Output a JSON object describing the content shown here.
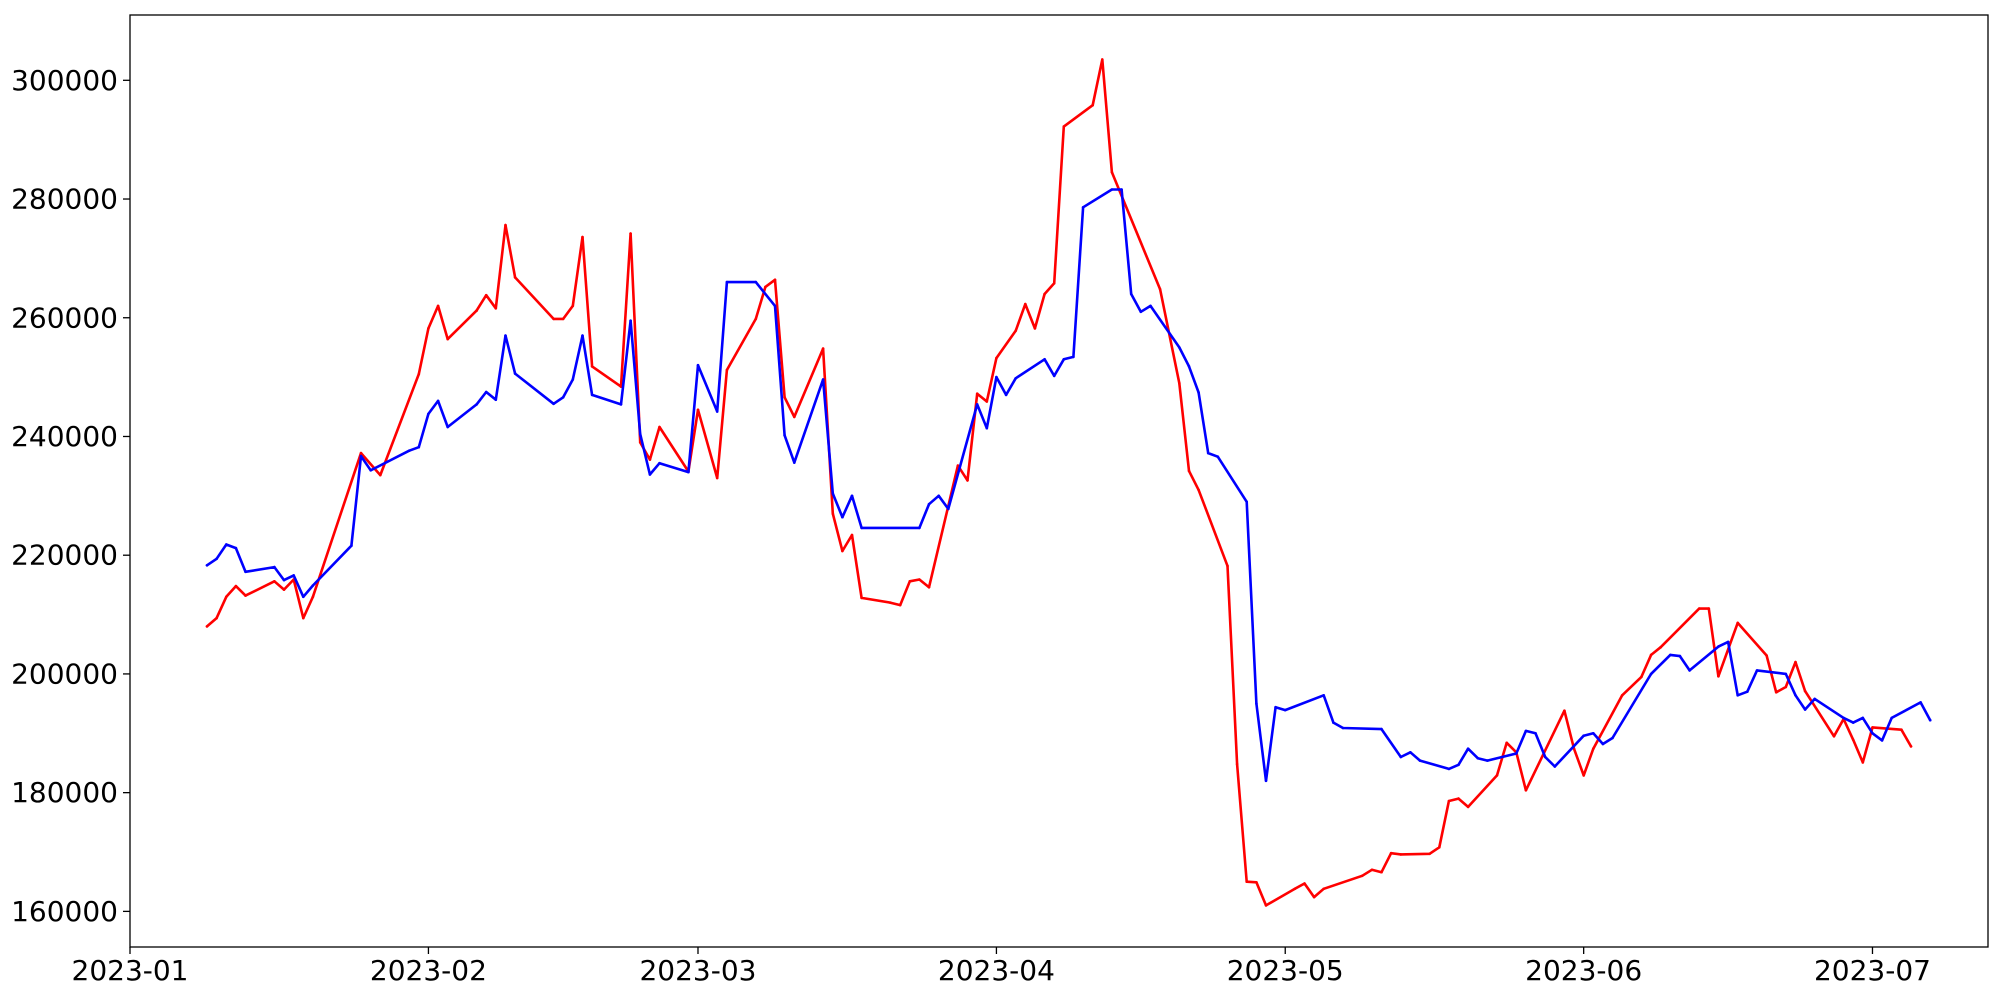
{
  "chart_data": {
    "type": "line",
    "title": "",
    "xlabel": "",
    "ylabel": "",
    "grid": false,
    "legend": "none",
    "xlim": [
      "2023-01-01",
      "2023-07-13"
    ],
    "ylim": [
      154000,
      311000
    ],
    "x_ticks": [
      "2023-01-01",
      "2023-02-01",
      "2023-03-01",
      "2023-04-01",
      "2023-05-01",
      "2023-06-01",
      "2023-07-01"
    ],
    "x_tick_labels": [
      "2023-01",
      "2023-02",
      "2023-03",
      "2023-04",
      "2023-05",
      "2023-06",
      "2023-07"
    ],
    "y_ticks": [
      160000,
      180000,
      200000,
      220000,
      240000,
      260000,
      280000,
      300000
    ],
    "y_tick_labels": [
      "160000",
      "180000",
      "200000",
      "220000",
      "240000",
      "260000",
      "280000",
      "300000"
    ],
    "series": [
      {
        "color": "#ff0000",
        "points": [
          [
            "2023-01-09",
            208000
          ],
          [
            "2023-01-10",
            209400
          ],
          [
            "2023-01-11",
            213000
          ],
          [
            "2023-01-12",
            214800
          ],
          [
            "2023-01-13",
            213200
          ],
          [
            "2023-01-16",
            215600
          ],
          [
            "2023-01-17",
            214200
          ],
          [
            "2023-01-18",
            215900
          ],
          [
            "2023-01-19",
            209400
          ],
          [
            "2023-01-20",
            213000
          ],
          [
            "2023-01-25",
            237200
          ],
          [
            "2023-01-27",
            233500
          ],
          [
            "2023-01-31",
            250500
          ],
          [
            "2023-02-01",
            258200
          ],
          [
            "2023-02-02",
            262000
          ],
          [
            "2023-02-03",
            256400
          ],
          [
            "2023-02-06",
            261200
          ],
          [
            "2023-02-07",
            263800
          ],
          [
            "2023-02-08",
            261600
          ],
          [
            "2023-02-09",
            275600
          ],
          [
            "2023-02-10",
            266800
          ],
          [
            "2023-02-14",
            259800
          ],
          [
            "2023-02-15",
            259800
          ],
          [
            "2023-02-16",
            262000
          ],
          [
            "2023-02-17",
            273600
          ],
          [
            "2023-02-18",
            251800
          ],
          [
            "2023-02-21",
            248400
          ],
          [
            "2023-02-22",
            274200
          ],
          [
            "2023-02-23",
            239000
          ],
          [
            "2023-02-24",
            236100
          ],
          [
            "2023-02-25",
            241600
          ],
          [
            "2023-02-28",
            234100
          ],
          [
            "2023-03-01",
            244500
          ],
          [
            "2023-03-03",
            233000
          ],
          [
            "2023-03-04",
            251200
          ],
          [
            "2023-03-07",
            259800
          ],
          [
            "2023-03-08",
            265200
          ],
          [
            "2023-03-09",
            266400
          ],
          [
            "2023-03-10",
            246600
          ],
          [
            "2023-03-11",
            243300
          ],
          [
            "2023-03-14",
            254800
          ],
          [
            "2023-03-15",
            227000
          ],
          [
            "2023-03-16",
            220700
          ],
          [
            "2023-03-17",
            223400
          ],
          [
            "2023-03-18",
            212800
          ],
          [
            "2023-03-21",
            212000
          ],
          [
            "2023-03-22",
            211600
          ],
          [
            "2023-03-23",
            215600
          ],
          [
            "2023-03-24",
            215900
          ],
          [
            "2023-03-25",
            214600
          ],
          [
            "2023-03-28",
            235100
          ],
          [
            "2023-03-29",
            232600
          ],
          [
            "2023-03-30",
            247200
          ],
          [
            "2023-03-31",
            245900
          ],
          [
            "2023-04-01",
            253200
          ],
          [
            "2023-04-03",
            257800
          ],
          [
            "2023-04-04",
            262300
          ],
          [
            "2023-04-05",
            258200
          ],
          [
            "2023-04-06",
            264000
          ],
          [
            "2023-04-07",
            265800
          ],
          [
            "2023-04-08",
            292200
          ],
          [
            "2023-04-11",
            295800
          ],
          [
            "2023-04-12",
            303500
          ],
          [
            "2023-04-13",
            284500
          ],
          [
            "2023-04-18",
            264800
          ],
          [
            "2023-04-20",
            249000
          ],
          [
            "2023-04-21",
            234200
          ],
          [
            "2023-04-22",
            231000
          ],
          [
            "2023-04-25",
            218200
          ],
          [
            "2023-04-26",
            184800
          ],
          [
            "2023-04-27",
            165000
          ],
          [
            "2023-04-28",
            164900
          ],
          [
            "2023-04-29",
            161000
          ],
          [
            "2023-05-02",
            163800
          ],
          [
            "2023-05-03",
            164700
          ],
          [
            "2023-05-04",
            162400
          ],
          [
            "2023-05-05",
            163800
          ],
          [
            "2023-05-09",
            166000
          ],
          [
            "2023-05-10",
            167000
          ],
          [
            "2023-05-11",
            166600
          ],
          [
            "2023-05-12",
            169800
          ],
          [
            "2023-05-13",
            169600
          ],
          [
            "2023-05-16",
            169700
          ],
          [
            "2023-05-17",
            170800
          ],
          [
            "2023-05-18",
            178600
          ],
          [
            "2023-05-19",
            179000
          ],
          [
            "2023-05-20",
            177600
          ],
          [
            "2023-05-23",
            182900
          ],
          [
            "2023-05-24",
            188400
          ],
          [
            "2023-05-25",
            186800
          ],
          [
            "2023-05-26",
            180400
          ],
          [
            "2023-05-30",
            193800
          ],
          [
            "2023-05-31",
            187400
          ],
          [
            "2023-06-01",
            182900
          ],
          [
            "2023-06-02",
            187400
          ],
          [
            "2023-06-05",
            196400
          ],
          [
            "2023-06-07",
            199500
          ],
          [
            "2023-06-08",
            203200
          ],
          [
            "2023-06-09",
            204500
          ],
          [
            "2023-06-13",
            211000
          ],
          [
            "2023-06-14",
            211000
          ],
          [
            "2023-06-15",
            199600
          ],
          [
            "2023-06-17",
            208600
          ],
          [
            "2023-06-20",
            203100
          ],
          [
            "2023-06-21",
            196900
          ],
          [
            "2023-06-22",
            197800
          ],
          [
            "2023-06-23",
            202000
          ],
          [
            "2023-06-24",
            197100
          ],
          [
            "2023-06-27",
            189500
          ],
          [
            "2023-06-28",
            192400
          ],
          [
            "2023-06-29",
            188900
          ],
          [
            "2023-06-30",
            185100
          ],
          [
            "2023-07-01",
            191000
          ],
          [
            "2023-07-04",
            190600
          ],
          [
            "2023-07-05",
            187800
          ]
        ]
      },
      {
        "color": "#0000ff",
        "points": [
          [
            "2023-01-09",
            218300
          ],
          [
            "2023-01-10",
            219400
          ],
          [
            "2023-01-11",
            221800
          ],
          [
            "2023-01-12",
            221200
          ],
          [
            "2023-01-13",
            217200
          ],
          [
            "2023-01-16",
            218000
          ],
          [
            "2023-01-17",
            215800
          ],
          [
            "2023-01-18",
            216600
          ],
          [
            "2023-01-19",
            213000
          ],
          [
            "2023-01-20",
            214900
          ],
          [
            "2023-01-24",
            221600
          ],
          [
            "2023-01-25",
            236700
          ],
          [
            "2023-01-26",
            234300
          ],
          [
            "2023-01-30",
            237600
          ],
          [
            "2023-01-31",
            238200
          ],
          [
            "2023-02-01",
            243800
          ],
          [
            "2023-02-02",
            246000
          ],
          [
            "2023-02-03",
            241600
          ],
          [
            "2023-02-06",
            245400
          ],
          [
            "2023-02-07",
            247500
          ],
          [
            "2023-02-08",
            246200
          ],
          [
            "2023-02-09",
            257000
          ],
          [
            "2023-02-10",
            250600
          ],
          [
            "2023-02-14",
            245500
          ],
          [
            "2023-02-15",
            246600
          ],
          [
            "2023-02-16",
            249600
          ],
          [
            "2023-02-17",
            257000
          ],
          [
            "2023-02-18",
            247000
          ],
          [
            "2023-02-21",
            245400
          ],
          [
            "2023-02-22",
            259500
          ],
          [
            "2023-02-23",
            240400
          ],
          [
            "2023-02-24",
            233600
          ],
          [
            "2023-02-25",
            235500
          ],
          [
            "2023-02-28",
            234000
          ],
          [
            "2023-03-01",
            252000
          ],
          [
            "2023-03-03",
            244200
          ],
          [
            "2023-03-04",
            266000
          ],
          [
            "2023-03-07",
            266000
          ],
          [
            "2023-03-09",
            262000
          ],
          [
            "2023-03-10",
            240200
          ],
          [
            "2023-03-11",
            235600
          ],
          [
            "2023-03-14",
            249600
          ],
          [
            "2023-03-15",
            230400
          ],
          [
            "2023-03-16",
            226400
          ],
          [
            "2023-03-17",
            230000
          ],
          [
            "2023-03-18",
            224600
          ],
          [
            "2023-03-24",
            224600
          ],
          [
            "2023-03-25",
            228600
          ],
          [
            "2023-03-26",
            230000
          ],
          [
            "2023-03-27",
            227800
          ],
          [
            "2023-03-30",
            245400
          ],
          [
            "2023-03-31",
            241400
          ],
          [
            "2023-04-01",
            250000
          ],
          [
            "2023-04-02",
            247000
          ],
          [
            "2023-04-03",
            249800
          ],
          [
            "2023-04-06",
            253000
          ],
          [
            "2023-04-07",
            250200
          ],
          [
            "2023-04-08",
            253000
          ],
          [
            "2023-04-09",
            253400
          ],
          [
            "2023-04-10",
            278600
          ],
          [
            "2023-04-13",
            281600
          ],
          [
            "2023-04-14",
            281600
          ],
          [
            "2023-04-15",
            264000
          ],
          [
            "2023-04-16",
            261000
          ],
          [
            "2023-04-17",
            262000
          ],
          [
            "2023-04-20",
            255000
          ],
          [
            "2023-04-21",
            251800
          ],
          [
            "2023-04-22",
            247400
          ],
          [
            "2023-04-23",
            237200
          ],
          [
            "2023-04-24",
            236600
          ],
          [
            "2023-04-27",
            229000
          ],
          [
            "2023-04-28",
            195000
          ],
          [
            "2023-04-29",
            182000
          ],
          [
            "2023-04-30",
            194400
          ],
          [
            "2023-05-01",
            193900
          ],
          [
            "2023-05-05",
            196400
          ],
          [
            "2023-05-06",
            191800
          ],
          [
            "2023-05-07",
            190900
          ],
          [
            "2023-05-11",
            190700
          ],
          [
            "2023-05-13",
            186000
          ],
          [
            "2023-05-14",
            186800
          ],
          [
            "2023-05-15",
            185400
          ],
          [
            "2023-05-18",
            184000
          ],
          [
            "2023-05-19",
            184700
          ],
          [
            "2023-05-20",
            187400
          ],
          [
            "2023-05-21",
            185800
          ],
          [
            "2023-05-22",
            185400
          ],
          [
            "2023-05-25",
            186600
          ],
          [
            "2023-05-26",
            190400
          ],
          [
            "2023-05-27",
            190000
          ],
          [
            "2023-05-28",
            186000
          ],
          [
            "2023-05-29",
            184400
          ],
          [
            "2023-06-01",
            189600
          ],
          [
            "2023-06-02",
            190000
          ],
          [
            "2023-06-03",
            188200
          ],
          [
            "2023-06-04",
            189200
          ],
          [
            "2023-06-08",
            200000
          ],
          [
            "2023-06-10",
            203200
          ],
          [
            "2023-06-11",
            203000
          ],
          [
            "2023-06-12",
            200600
          ],
          [
            "2023-06-15",
            204600
          ],
          [
            "2023-06-16",
            205400
          ],
          [
            "2023-06-17",
            196400
          ],
          [
            "2023-06-18",
            197000
          ],
          [
            "2023-06-19",
            200600
          ],
          [
            "2023-06-22",
            200000
          ],
          [
            "2023-06-23",
            196400
          ],
          [
            "2023-06-24",
            194000
          ],
          [
            "2023-06-25",
            195800
          ],
          [
            "2023-06-28",
            192600
          ],
          [
            "2023-06-29",
            191800
          ],
          [
            "2023-06-30",
            192600
          ],
          [
            "2023-07-01",
            190000
          ],
          [
            "2023-07-02",
            188800
          ],
          [
            "2023-07-03",
            192600
          ],
          [
            "2023-07-06",
            195200
          ],
          [
            "2023-07-07",
            192200
          ]
        ]
      }
    ]
  }
}
